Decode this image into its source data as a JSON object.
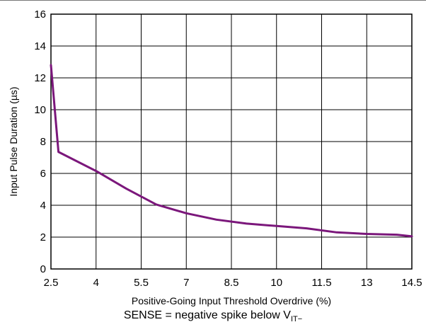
{
  "chart_data": {
    "type": "line",
    "title": "",
    "xlabel": "Positive-Going Input Threshold Overdrive (%)",
    "ylabel": "Input Pulse Duration (µs)",
    "xlim": [
      2.5,
      14.5
    ],
    "ylim": [
      0,
      16
    ],
    "xticks": [
      2.5,
      4,
      5.5,
      7,
      8.5,
      10,
      11.5,
      13,
      14.5
    ],
    "xtick_labels": [
      "2.5",
      "4",
      "5.5",
      "7",
      "8.5",
      "10",
      "11.5",
      "13",
      "14.5"
    ],
    "yticks": [
      0,
      2,
      4,
      6,
      8,
      10,
      12,
      14,
      16
    ],
    "ytick_labels": [
      "0",
      "2",
      "4",
      "6",
      "8",
      "10",
      "12",
      "14",
      "16"
    ],
    "grid": true,
    "line_color": "#7b177b",
    "series": [
      {
        "x": [
          2.5,
          2.75,
          4.0,
          5.0,
          6.0,
          7.0,
          8.0,
          9.0,
          10.0,
          11.0,
          12.0,
          13.0,
          14.0,
          14.5
        ],
        "y": [
          12.8,
          7.35,
          6.15,
          5.05,
          4.05,
          3.5,
          3.1,
          2.85,
          2.7,
          2.55,
          2.3,
          2.2,
          2.15,
          2.05
        ]
      }
    ]
  },
  "caption": {
    "text": "SENSE = negative spike below V",
    "subscript": "IT−"
  }
}
